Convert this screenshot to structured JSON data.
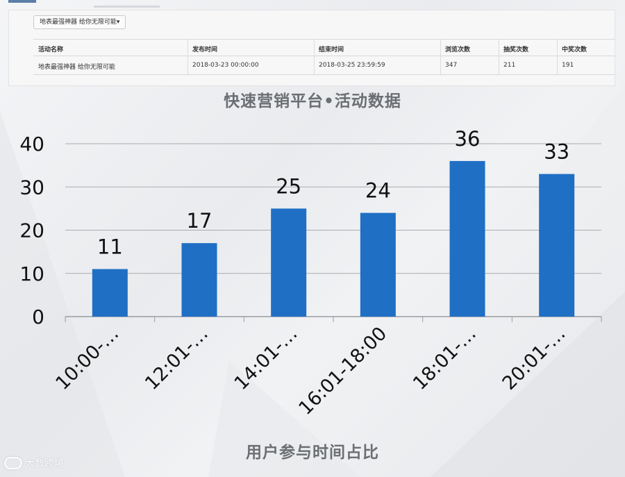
{
  "dropdown": {
    "label": "地表最强神器 给你无限可能▾"
  },
  "table": {
    "headers": [
      "活动名称",
      "发布时间",
      "结束时间",
      "浏览次数",
      "抽奖次数",
      "中奖次数"
    ],
    "rows": [
      [
        "地表最强神器 给你无限可能",
        "2018-03-23 00:00:00",
        "2018-03-25 23:59:59",
        "347",
        "211",
        "191"
      ]
    ]
  },
  "chart_data": {
    "type": "bar",
    "title": "快速营销平台•活动数据",
    "xlabel": "用户参与时间占比",
    "ylabel": "",
    "categories": [
      "10:00-…",
      "12:01-…",
      "14:01-…",
      "16:01-18:00",
      "18:01-…",
      "20:01-…"
    ],
    "values": [
      11,
      17,
      25,
      24,
      36,
      33
    ],
    "ylim": [
      0,
      40
    ],
    "yticks": [
      0,
      10,
      20,
      30,
      40
    ],
    "grid": true,
    "bar_color": "#1f6fc5"
  },
  "watermark": {
    "text": "大数跨境"
  }
}
